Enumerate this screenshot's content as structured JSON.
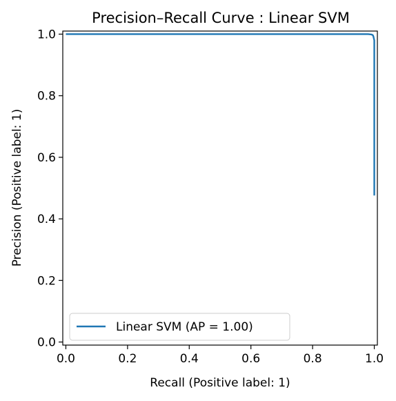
{
  "chart_data": {
    "type": "line",
    "title": "Precision–Recall Curve : Linear SVM",
    "xlabel": "Recall (Positive label: 1)",
    "ylabel": "Precision (Positive label: 1)",
    "xlim": [
      -0.01,
      1.01
    ],
    "ylim": [
      -0.01,
      1.01
    ],
    "xticks": [
      "0.0",
      "0.2",
      "0.4",
      "0.6",
      "0.8",
      "1.0"
    ],
    "yticks": [
      "0.0",
      "0.2",
      "0.4",
      "0.6",
      "0.8",
      "1.0"
    ],
    "grid": false,
    "legend_position": "lower-left",
    "series": [
      {
        "name": "Linear SVM (AP = 1.00)",
        "color": "#1f77b4",
        "x": [
          0.0,
          0.98,
          0.99,
          0.995,
          0.997,
          1.0,
          1.0
        ],
        "y": [
          1.0,
          1.0,
          0.999,
          0.997,
          0.993,
          0.98,
          0.476
        ]
      }
    ]
  }
}
